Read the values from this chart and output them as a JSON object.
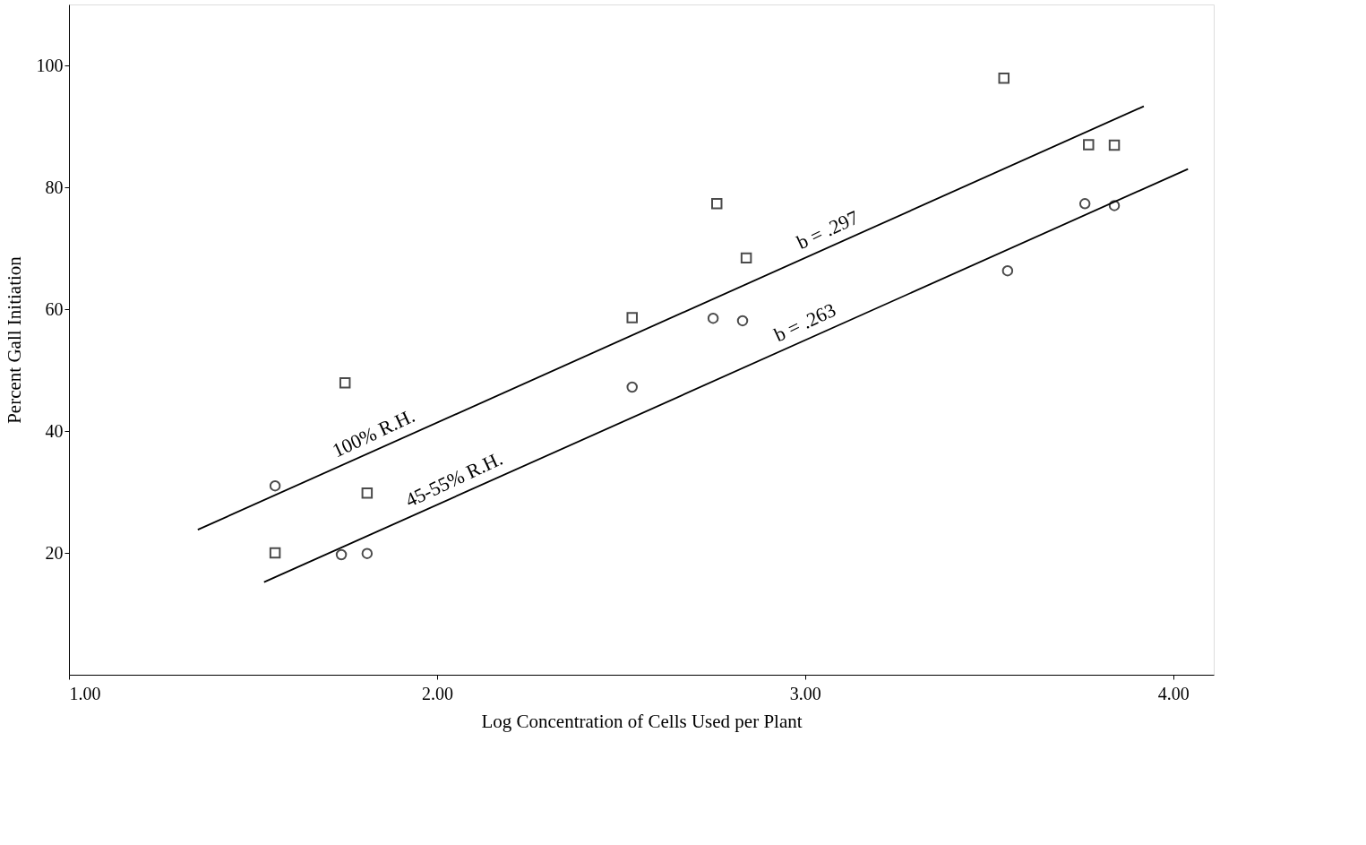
{
  "chart_data": {
    "type": "scatter",
    "xlabel": "Log Concentration of Cells Used per Plant",
    "ylabel": "Percent Gall Initiation",
    "xlim": [
      1.0,
      4.11
    ],
    "ylim": [
      0,
      110
    ],
    "xticks": [
      {
        "value": 1,
        "label": "1.00"
      },
      {
        "value": 2,
        "label": "2.00"
      },
      {
        "value": 3,
        "label": "3.00"
      },
      {
        "value": 4,
        "label": "4.00"
      }
    ],
    "yticks": [
      20,
      40,
      60,
      80,
      100
    ],
    "grid": false,
    "series": [
      {
        "marker": "square",
        "color": "#000000",
        "x": [
          1.56,
          1.75,
          1.81,
          2.53,
          2.76,
          2.84,
          3.54,
          3.77,
          3.84
        ],
        "values": [
          20,
          47.9,
          29.8,
          58.6,
          77.3,
          68.4,
          97.9,
          87.0,
          86.9
        ]
      },
      {
        "marker": "circle",
        "color": "#000000",
        "x": [
          1.56,
          1.74,
          1.81,
          2.53,
          2.75,
          2.83,
          3.55,
          3.76,
          3.84
        ],
        "values": [
          31.0,
          19.7,
          19.9,
          47.2,
          58.5,
          58.1,
          66.3,
          77.3,
          77.0
        ]
      },
      {
        "type": "line",
        "marker": "none",
        "color": "#000000",
        "x": [
          1.35,
          3.92
        ],
        "values": [
          23.8,
          93.3
        ]
      },
      {
        "type": "line",
        "marker": "none",
        "color": "#000000",
        "x": [
          1.53,
          4.04
        ],
        "values": [
          15.2,
          83.0
        ]
      }
    ],
    "annotations": [
      "100% R.H.",
      "b = .297",
      "45-55% R.H.",
      "b = .263"
    ]
  }
}
